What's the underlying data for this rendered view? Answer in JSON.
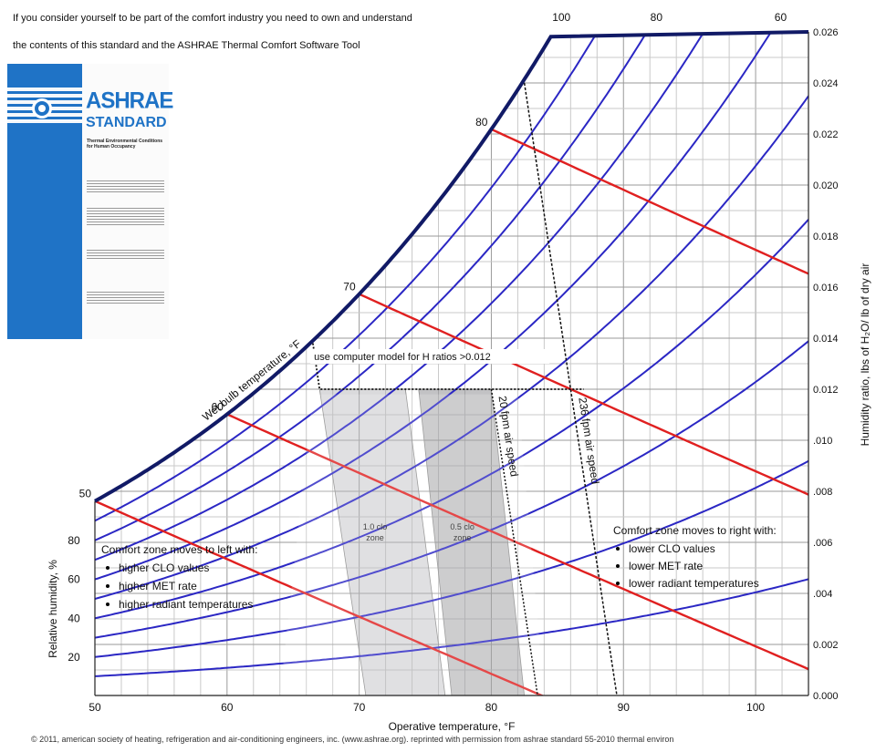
{
  "intro": {
    "line1": "If you consider yourself to be part of the comfort industry you need to own and understand",
    "line2": "the contents of this standard and the ASHRAE  Thermal  Comfort Software Tool"
  },
  "standard_cover": {
    "brand": "ASHRAE",
    "brand_line2": "STANDARD",
    "subtitle": "Thermal Environmental Conditions for Human Occupancy"
  },
  "colors": {
    "cover_blue": "#1f73c6",
    "rh_curve": "#2b27c4",
    "wet_bulb": "#e02020",
    "saturation": "#111a66"
  },
  "chart_data": {
    "type": "psychrometric",
    "xlabel": "Operative temperature, °F",
    "ylabel_right": "Humidity ratio, lbs of H₂O/ lb of dry air",
    "ylabel_left": "Relative humidity, %",
    "xlim": [
      50,
      104
    ],
    "ylim": [
      0.0,
      0.026
    ],
    "x_ticks": [
      "50",
      "60",
      "70",
      "80",
      "90",
      "100"
    ],
    "y_ticks": [
      "0.000",
      "0.002",
      ".004",
      ".006",
      ".008",
      ".010",
      "0.012",
      "0.014",
      "0.016",
      "0.018",
      "0.020",
      "0.022",
      "0.024",
      "0.026"
    ],
    "rh_left_labels": [
      "20",
      "40",
      "60",
      "80"
    ],
    "rh_top_labels": [
      "100",
      "80",
      "60"
    ],
    "wet_bulb_labels": [
      "50",
      "60",
      "70",
      "80"
    ],
    "wet_bulb_title": "Wet bulb temperature, °F",
    "h_ratio_note": "use computer model for H ratios >0.012",
    "air_speed_20": "20 fpm air speed",
    "air_speed_236": "236 fpm air speed",
    "zone_1_0": [
      "1.0 clo",
      "zone"
    ],
    "zone_0_5": [
      "0.5 clo",
      "zone"
    ],
    "left_note_title": "Comfort zone moves to left with:",
    "left_note_items": [
      "higher CLO values",
      "higher MET rate",
      "higher radiant temperatures"
    ],
    "right_note_title": "Comfort zone moves to right with:",
    "right_note_items": [
      "lower CLO values",
      "lower MET rate",
      "lower radiant temperatures"
    ],
    "zone_1_0_polygon": [
      [
        67,
        0.012
      ],
      [
        73.5,
        0.012
      ],
      [
        76.5,
        0.0
      ],
      [
        70.5,
        0.0
      ]
    ],
    "zone_0_5_polygon": [
      [
        74.5,
        0.012
      ],
      [
        80,
        0.012
      ],
      [
        82.5,
        0.0
      ],
      [
        77,
        0.0
      ]
    ],
    "line_20fpm": [
      [
        80,
        0.012
      ],
      [
        83.5,
        0.0
      ]
    ],
    "line_236fpm": [
      [
        82.5,
        0.024
      ],
      [
        89.5,
        0.0
      ]
    ],
    "line_hratio": [
      [
        66.5,
        0.0138
      ],
      [
        67,
        0.012
      ],
      [
        87,
        0.012
      ]
    ],
    "wet_bulb_lines": [
      50,
      60,
      70,
      80
    ],
    "rh_curves": [
      10,
      20,
      30,
      40,
      50,
      60,
      70,
      80,
      90,
      100
    ]
  },
  "footer": "© 2011, american society of heating, refrigeration and air-conditioning engineers, inc. (www.ashrae.org). reprinted with permission from ashrae standard 55-2010 thermal environ"
}
